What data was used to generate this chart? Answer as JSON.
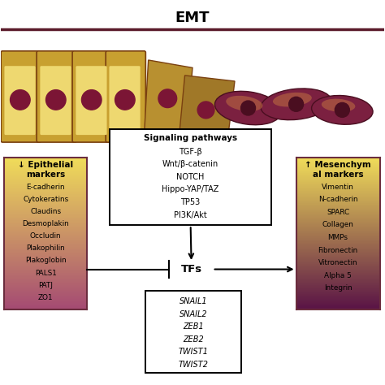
{
  "title": "EMT",
  "title_fontsize": 13,
  "title_fontweight": "bold",
  "background_color": "#ffffff",
  "signaling_box": {
    "title": "Signaling pathways",
    "items": [
      "TGF-β",
      "Wnt/β-catenin",
      "NOTCH",
      "Hippo-YAP/TAZ",
      "TP53",
      "PI3K/Akt"
    ]
  },
  "epithelial_box": {
    "title": "↓ Epithelial\nmarkers",
    "items": [
      "E-cadherin",
      "Cytokeratins",
      "Claudins",
      "Desmoplakin",
      "Occludin",
      "Plakophilin",
      "Plakoglobin",
      "PALS1",
      "PATJ",
      "ZO1"
    ],
    "edgecolor": "#6b2d3e"
  },
  "mesenchymal_box": {
    "title": "↑ Mesenchym\nal markers",
    "items": [
      "Vimentin",
      "N-cadherin",
      "SPARC",
      "Collagen",
      "MMPs",
      "Fibronectin",
      "Vitronectin",
      "Alpha 5",
      "Integrin"
    ],
    "edgecolor": "#6b2d3e"
  },
  "tf_list_box": {
    "items": [
      "SNAIL1",
      "SNAIL2",
      "ZEB1",
      "ZEB2",
      "TWIST1",
      "TWIST2"
    ]
  }
}
